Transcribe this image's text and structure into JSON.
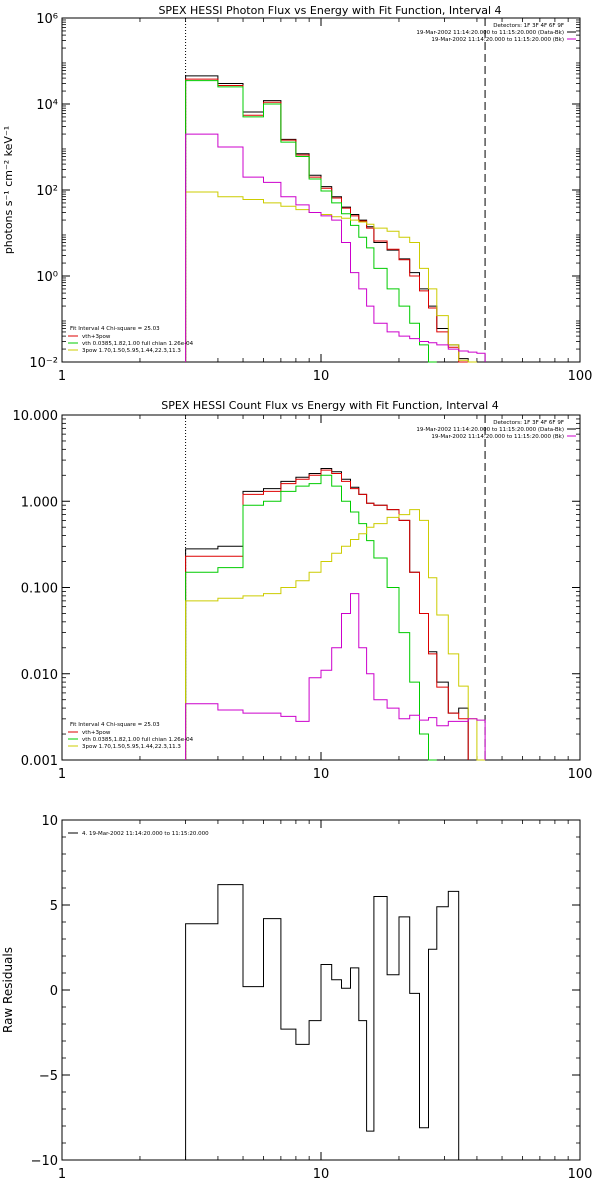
{
  "chart_data": [
    {
      "type": "line",
      "title": "SPEX HESSI Photon Flux vs Energy with Fit Function, Interval 4",
      "xlabel": "",
      "ylabel": "photons s⁻¹ cm⁻² keV⁻¹",
      "xscale": "log",
      "yscale": "log",
      "xlim": [
        1,
        100
      ],
      "ylim": [
        0.01,
        1000000
      ],
      "x_ticks": [
        {
          "v": 1,
          "label": "1"
        },
        {
          "v": 10,
          "label": "10"
        },
        {
          "v": 100,
          "label": "100"
        }
      ],
      "y_ticks": [
        {
          "v": 0.01,
          "label": "10⁻²"
        },
        {
          "v": 1,
          "label": "10⁰"
        },
        {
          "v": 100,
          "label": "10²"
        },
        {
          "v": 10000,
          "label": "10⁴"
        },
        {
          "v": 1000000,
          "label": "10⁶"
        }
      ],
      "vlines": [
        {
          "x": 3,
          "style": "dotted"
        },
        {
          "x": 43,
          "style": "dashed"
        }
      ],
      "bin_edges": [
        3,
        4,
        5,
        6,
        7,
        8,
        9,
        10,
        11,
        12,
        13,
        14,
        15,
        16,
        18,
        20,
        22,
        24,
        26,
        28,
        31,
        34,
        37,
        40,
        43
      ],
      "legend_right": [
        {
          "text": "Detectors: 1F 3F 4F 6F 9F",
          "color": "#000000"
        },
        {
          "text": "19-Mar-2002 11:14:20.000 to 11:15:20.000 (Data-Bk)",
          "color": "#000000"
        },
        {
          "text": "19-Mar-2002 11:14:20.000 to 11:15:20.000 (Bk)",
          "color": "#cc00cc"
        }
      ],
      "legend_left_header": "Fit Interval  4    Chi-square = 25.03",
      "legend_left": [
        {
          "text": "vth+3pow",
          "color": "#dd0000"
        },
        {
          "text": "vth 0.0385,1.82,1.00  full chian 1.26e-04",
          "color": "#00cc00"
        },
        {
          "text": "3pow 1.70,1.50,5.95,1.44,22.3,11.3",
          "color": "#cccc00"
        }
      ],
      "series": [
        {
          "name": "Data-Bk",
          "color": "#000000",
          "values": [
            45000,
            30000,
            6500,
            12000,
            1500,
            700,
            220,
            120,
            70,
            40,
            27,
            20,
            14,
            6,
            4,
            2.5,
            1.2,
            0.5,
            0.2,
            0.06,
            0.025,
            0.012
          ]
        },
        {
          "name": "vth+3pow",
          "color": "#dd0000",
          "values": [
            38000,
            27000,
            5500,
            11000,
            1450,
            650,
            200,
            110,
            65,
            38,
            25,
            19,
            13,
            6.5,
            4.2,
            2.4,
            1.0,
            0.45,
            0.18,
            0.05,
            0.022,
            0.01
          ]
        },
        {
          "name": "vth",
          "color": "#00cc00",
          "values": [
            35000,
            25000,
            5000,
            10000,
            1300,
            600,
            180,
            95,
            50,
            28,
            15,
            8,
            4.5,
            1.5,
            0.5,
            0.2,
            0.08,
            0.025,
            0.01
          ]
        },
        {
          "name": "3pow",
          "color": "#cccc00",
          "values": [
            90,
            70,
            60,
            50,
            42,
            35,
            30,
            27,
            24,
            22,
            20,
            18,
            16,
            13,
            11,
            8,
            6,
            1.5,
            0.5,
            0.12,
            0.025,
            0.011,
            0.008
          ]
        },
        {
          "name": "Bk",
          "color": "#cc00cc",
          "values": [
            2000,
            1000,
            200,
            150,
            70,
            45,
            30,
            25,
            20,
            6,
            1.2,
            0.5,
            0.2,
            0.08,
            0.05,
            0.04,
            0.035,
            0.03,
            0.028,
            0.025,
            0.02,
            0.018,
            0.017,
            0.016
          ]
        }
      ]
    },
    {
      "type": "line",
      "title": "SPEX HESSI Count Flux vs Energy with Fit Function, Interval 4",
      "xlabel": "",
      "ylabel": "",
      "xscale": "log",
      "yscale": "log",
      "xlim": [
        1,
        100
      ],
      "ylim": [
        0.001,
        10
      ],
      "x_ticks": [
        {
          "v": 1,
          "label": "1"
        },
        {
          "v": 10,
          "label": "10"
        },
        {
          "v": 100,
          "label": "100"
        }
      ],
      "y_ticks": [
        {
          "v": 0.001,
          "label": "0.001"
        },
        {
          "v": 0.01,
          "label": "0.010"
        },
        {
          "v": 0.1,
          "label": "0.100"
        },
        {
          "v": 1,
          "label": "1.000"
        },
        {
          "v": 10,
          "label": "10.000"
        }
      ],
      "vlines": [
        {
          "x": 3,
          "style": "dotted"
        },
        {
          "x": 43,
          "style": "dashed"
        }
      ],
      "bin_edges": [
        3,
        4,
        5,
        6,
        7,
        8,
        9,
        10,
        11,
        12,
        13,
        14,
        15,
        16,
        18,
        20,
        22,
        24,
        26,
        28,
        31,
        34,
        37,
        40,
        43
      ],
      "legend_right": [
        {
          "text": "Detectors: 1F 3F 4F 6F 9F",
          "color": "#000000"
        },
        {
          "text": "19-Mar-2002 11:14:20.000 to 11:15:20.000 (Data-Bk)",
          "color": "#000000"
        },
        {
          "text": "19-Mar-2002 11:14:20.000 to 11:15:20.000 (Bk)",
          "color": "#cc00cc"
        }
      ],
      "legend_left_header": "Fit Interval  4    Chi-square = 25.03",
      "legend_left": [
        {
          "text": "vth+3pow",
          "color": "#dd0000"
        },
        {
          "text": "vth 0.0385,1.82,1.00  full chian 1.26e-04",
          "color": "#00cc00"
        },
        {
          "text": "3pow 1.70,1.50,5.95,1.44,22.3,11.3",
          "color": "#cccc00"
        }
      ],
      "series": [
        {
          "name": "Data-Bk",
          "color": "#000000",
          "values": [
            0.28,
            0.3,
            1.3,
            1.4,
            1.7,
            1.9,
            2.1,
            2.4,
            2.2,
            1.8,
            1.45,
            1.2,
            0.95,
            0.9,
            0.8,
            0.6,
            0.15,
            0.05,
            0.018,
            0.008,
            0.0035,
            0.004
          ]
        },
        {
          "name": "vth+3pow",
          "color": "#dd0000",
          "values": [
            0.23,
            0.23,
            1.2,
            1.3,
            1.6,
            1.8,
            2.0,
            2.3,
            2.1,
            1.7,
            1.4,
            1.2,
            0.95,
            0.9,
            0.8,
            0.6,
            0.15,
            0.05,
            0.017,
            0.007,
            0.0035,
            0.003
          ]
        },
        {
          "name": "vth",
          "color": "#00cc00",
          "values": [
            0.15,
            0.17,
            0.9,
            1.0,
            1.3,
            1.5,
            1.6,
            2.0,
            1.5,
            1.0,
            0.75,
            0.55,
            0.35,
            0.22,
            0.1,
            0.03,
            0.008,
            0.002,
            0.0009
          ]
        },
        {
          "name": "3pow",
          "color": "#cccc00",
          "values": [
            0.07,
            0.075,
            0.08,
            0.085,
            0.1,
            0.12,
            0.15,
            0.2,
            0.25,
            0.3,
            0.36,
            0.42,
            0.5,
            0.55,
            0.65,
            0.7,
            0.8,
            0.6,
            0.13,
            0.048,
            0.017,
            0.0072,
            0.003,
            0.0009
          ]
        },
        {
          "name": "Bk",
          "color": "#cc00cc",
          "values": [
            0.0045,
            0.0038,
            0.0035,
            0.0035,
            0.0032,
            0.0028,
            0.009,
            0.011,
            0.02,
            0.05,
            0.085,
            0.02,
            0.01,
            0.005,
            0.004,
            0.003,
            0.0033,
            0.0029,
            0.0031,
            0.0025,
            0.0028,
            0.0028,
            0.003,
            0.0029
          ]
        }
      ]
    },
    {
      "type": "line",
      "title": "",
      "xlabel": "",
      "ylabel": "Raw Residuals",
      "xscale": "log",
      "yscale": "linear",
      "xlim": [
        1,
        100
      ],
      "ylim": [
        -10,
        10
      ],
      "x_ticks": [
        {
          "v": 1,
          "label": "1"
        },
        {
          "v": 10,
          "label": "10"
        },
        {
          "v": 100,
          "label": "100"
        }
      ],
      "y_ticks": [
        {
          "v": -10,
          "label": "−10"
        },
        {
          "v": -5,
          "label": "−5"
        },
        {
          "v": 0,
          "label": "0"
        },
        {
          "v": 5,
          "label": "5"
        },
        {
          "v": 10,
          "label": "10"
        }
      ],
      "legend_right": [],
      "legend_left_header": "",
      "legend_left": [
        {
          "text": "4. 19-Mar-2002 11:14:20.000 to 11:15:20.000",
          "color": "#000000"
        }
      ],
      "bin_edges": [
        3,
        4,
        5,
        6,
        7,
        8,
        9,
        10,
        11,
        12,
        13,
        14,
        15,
        16,
        18,
        20,
        22,
        24,
        26,
        28,
        31,
        34,
        37,
        40,
        43
      ],
      "series": [
        {
          "name": "Residuals",
          "color": "#000000",
          "values": [
            3.9,
            6.2,
            0.2,
            4.2,
            -2.3,
            -3.2,
            -1.8,
            1.5,
            0.6,
            0.1,
            1.3,
            -1.8,
            -8.3,
            5.5,
            0.9,
            4.3,
            -0.2,
            -8.1,
            2.4,
            4.9,
            5.8
          ]
        }
      ]
    }
  ]
}
